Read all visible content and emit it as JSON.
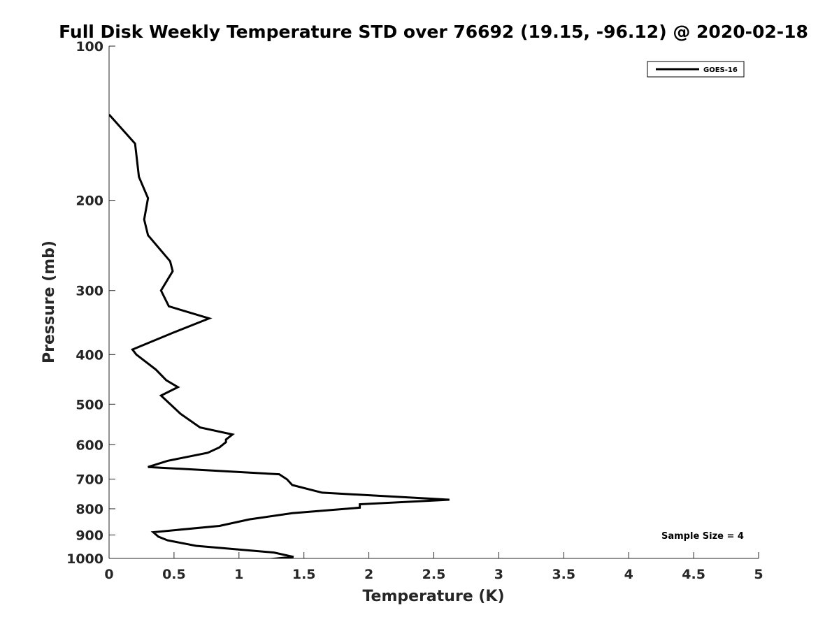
{
  "chart_data": {
    "type": "line",
    "title": "Full Disk Weekly Temperature STD over 76692 (19.15, -96.12) @ 2020-02-18",
    "xlabel": "Temperature (K)",
    "ylabel": "Pressure (mb)",
    "xlim": [
      0,
      5
    ],
    "ylim": [
      100,
      1000
    ],
    "yscale": "log",
    "y_reversed": true,
    "grid": false,
    "legend_position": "top-right",
    "x_ticks": [
      0,
      0.5,
      1,
      1.5,
      2,
      2.5,
      3,
      3.5,
      4,
      4.5,
      5
    ],
    "x_tick_labels": [
      "0",
      "0.5",
      "1",
      "1.5",
      "2",
      "2.5",
      "3",
      "3.5",
      "4",
      "4.5",
      "5"
    ],
    "y_ticks": [
      100,
      200,
      300,
      400,
      500,
      600,
      700,
      800,
      900,
      1000
    ],
    "y_tick_labels": [
      "100",
      "200",
      "300",
      "400",
      "500",
      "600",
      "700",
      "800",
      "900",
      "1000"
    ],
    "series": [
      {
        "name": "GOES-16",
        "color": "#000000",
        "x": [
          0.0,
          0.2,
          0.23,
          0.3,
          0.27,
          0.3,
          0.47,
          0.49,
          0.4,
          0.46,
          0.77,
          0.5,
          0.18,
          0.21,
          0.36,
          0.44,
          0.53,
          0.4,
          0.55,
          0.7,
          0.95,
          0.9,
          0.9,
          0.85,
          0.76,
          0.45,
          0.3,
          1.31,
          1.37,
          1.41,
          1.64,
          2.62,
          1.93,
          1.93,
          1.41,
          1.08,
          0.85,
          0.34,
          0.38,
          0.45,
          0.67,
          1.27,
          1.42,
          1.12
        ],
        "y": [
          136,
          155,
          180,
          198,
          218,
          234,
          263,
          275,
          300,
          322,
          340,
          362,
          391,
          400,
          428,
          449,
          463,
          481,
          522,
          555,
          573,
          586,
          593,
          607,
          622,
          645,
          663,
          685,
          701,
          719,
          744,
          768,
          784,
          796,
          816,
          839,
          864,
          889,
          907,
          922,
          945,
          974,
          993,
          1010
        ]
      }
    ],
    "annotations": [
      {
        "text": "Sample Size = 4",
        "position": "bottom-right"
      }
    ]
  }
}
